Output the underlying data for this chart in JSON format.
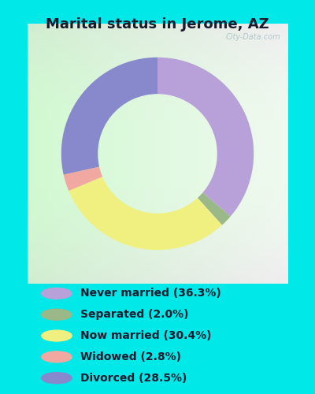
{
  "title": "Marital status in Jerome, AZ",
  "title_fontsize": 13,
  "title_fontweight": "bold",
  "title_color": "#1a1a2e",
  "categories": [
    "Never married",
    "Separated",
    "Now married",
    "Widowed",
    "Divorced"
  ],
  "values": [
    36.3,
    2.0,
    30.4,
    2.8,
    28.5
  ],
  "colors": [
    "#b8a0d8",
    "#9ab888",
    "#f0f080",
    "#f0a8a0",
    "#8888cc"
  ],
  "legend_labels": [
    "Never married (36.3%)",
    "Separated (2.0%)",
    "Now married (30.4%)",
    "Widowed (2.8%)",
    "Divorced (28.5%)"
  ],
  "bg_outer": "#00e8e8",
  "watermark": "City-Data.com",
  "donut_width": 0.38,
  "start_angle": 90,
  "legend_fontsize": 10,
  "legend_text_color": "#1a1a2e"
}
